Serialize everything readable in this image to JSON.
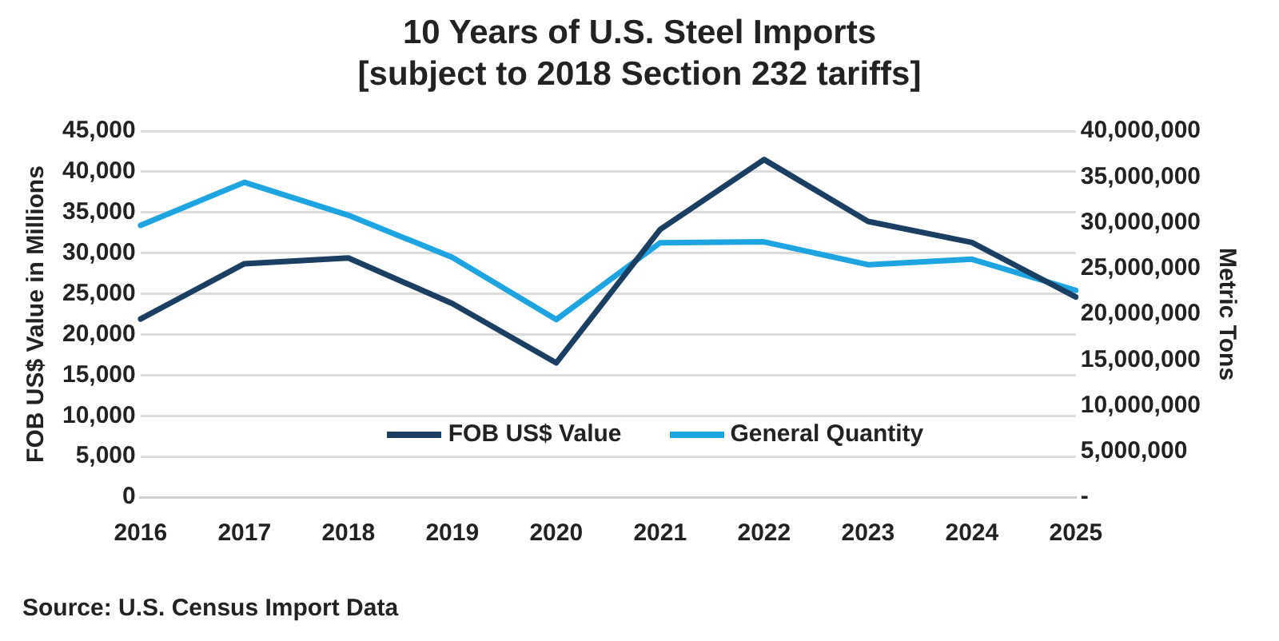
{
  "chart_data": {
    "type": "line",
    "title": "10 Years of U.S. Steel Imports [subject to 2018 Section 232 tariffs]",
    "categories": [
      "2016",
      "2017",
      "2018",
      "2019",
      "2020",
      "2021",
      "2022",
      "2023",
      "2024",
      "2025"
    ],
    "series": [
      {
        "name": "FOB US$ Value",
        "color": "#1b3f63",
        "values": [
          21900,
          28700,
          29400,
          23800,
          16500,
          32900,
          41500,
          33900,
          31300,
          24600
        ]
      },
      {
        "name": "General Quantity",
        "color": "#1ea4e0",
        "axis": "y2",
        "values": [
          29700000,
          34400000,
          30800000,
          26200000,
          19400000,
          27800000,
          27900000,
          25400000,
          26000000,
          22600000
        ]
      }
    ],
    "ylabel": "FOB US$ Value in Millions",
    "y2label": "Metric Tons",
    "ylim": [
      0,
      45000
    ],
    "yticks": [
      0,
      {
        "value": 5000,
        "label": "5,000"
      },
      {
        "value": 10000,
        "label": "10,000"
      },
      {
        "value": 15000,
        "label": "15,000"
      },
      {
        "value": 20000,
        "label": "20,000"
      },
      {
        "value": 25000,
        "label": "25,000"
      },
      {
        "value": 30000,
        "label": "30,000"
      },
      {
        "value": 35000,
        "label": "35,000"
      },
      {
        "value": 40000,
        "label": "40,000"
      },
      {
        "value": 45000,
        "label": "45,000"
      }
    ],
    "y2lim": [
      0,
      40000000
    ],
    "y2ticks": [
      {
        "value": 0,
        "label": "-"
      },
      {
        "value": 5000000,
        "label": "5,000,000"
      },
      {
        "value": 10000000,
        "label": "10,000,000"
      },
      {
        "value": 15000000,
        "label": "15,000,000"
      },
      {
        "value": 20000000,
        "label": "20,000,000"
      },
      {
        "value": 25000000,
        "label": "25,000,000"
      },
      {
        "value": 30000000,
        "label": "30,000,000"
      },
      {
        "value": 35000000,
        "label": "35,000,000"
      },
      {
        "value": 40000000,
        "label": "40,000,000"
      }
    ],
    "grid": "y",
    "legend": "bottom",
    "marker": "none",
    "line_style": "solid",
    "annotations": [
      "Source: U.S. Census Import Data"
    ]
  }
}
